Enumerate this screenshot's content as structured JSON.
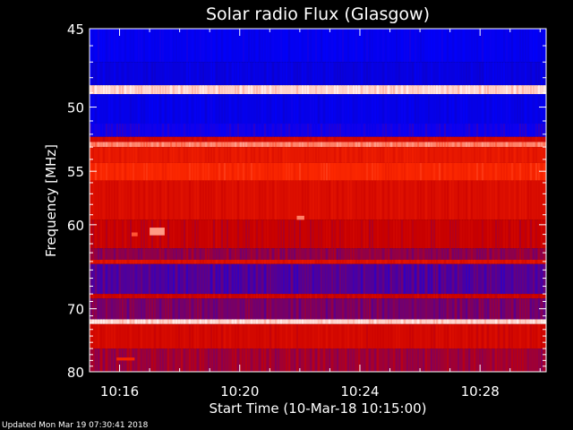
{
  "chart_data": {
    "type": "heatmap",
    "title": "Solar radio Flux (Glasgow)",
    "xlabel": "Start Time (10-Mar-18 10:15:00)",
    "ylabel": "Frequency [MHz]",
    "x_ticks": [
      "10:16",
      "10:20",
      "10:24",
      "10:28"
    ],
    "x_tick_minutes": [
      16,
      20,
      24,
      28
    ],
    "xlim_minutes": [
      15,
      30.2
    ],
    "y_ticks": [
      45,
      50,
      55,
      60,
      70,
      80
    ],
    "ylim": [
      45,
      80
    ],
    "y_scale": "reciprocal",
    "colormap": [
      "#1a008c",
      "#0000ff",
      "#c80000",
      "#ff2a00",
      "#ffffff"
    ],
    "bands": [
      {
        "f0": 45.0,
        "f1": 47.0,
        "level": 0.22
      },
      {
        "f0": 47.0,
        "f1": 48.5,
        "level": 0.18
      },
      {
        "f0": 48.5,
        "f1": 49.1,
        "level": 0.95
      },
      {
        "f0": 49.1,
        "f1": 51.2,
        "level": 0.2
      },
      {
        "f0": 51.2,
        "f1": 52.2,
        "level": 0.27
      },
      {
        "f0": 52.2,
        "f1": 52.6,
        "level": 0.55
      },
      {
        "f0": 52.6,
        "f1": 53.0,
        "level": 0.85
      },
      {
        "f0": 53.0,
        "f1": 54.3,
        "level": 0.64
      },
      {
        "f0": 54.3,
        "f1": 55.8,
        "level": 0.72
      },
      {
        "f0": 55.8,
        "f1": 59.5,
        "level": 0.58
      },
      {
        "f0": 59.5,
        "f1": 62.5,
        "level": 0.5
      },
      {
        "f0": 62.5,
        "f1": 63.8,
        "level": 0.43
      },
      {
        "f0": 63.8,
        "f1": 64.3,
        "level": 0.6
      },
      {
        "f0": 64.3,
        "f1": 68.0,
        "level": 0.35
      },
      {
        "f0": 68.0,
        "f1": 68.6,
        "level": 0.52
      },
      {
        "f0": 68.6,
        "f1": 71.5,
        "level": 0.4
      },
      {
        "f0": 71.5,
        "f1": 72.2,
        "level": 0.95
      },
      {
        "f0": 72.2,
        "f1": 76.0,
        "level": 0.55
      },
      {
        "f0": 76.0,
        "f1": 80.0,
        "level": 0.45
      }
    ],
    "bursts": [
      {
        "t0": 16.4,
        "t1": 16.6,
        "f0": 60.8,
        "f1": 61.2,
        "level": 0.8
      },
      {
        "t0": 17.0,
        "t1": 17.5,
        "f0": 60.3,
        "f1": 61.1,
        "level": 0.88
      },
      {
        "t0": 21.9,
        "t1": 22.15,
        "f0": 59.1,
        "f1": 59.5,
        "level": 0.85
      },
      {
        "t0": 15.9,
        "t1": 16.5,
        "f0": 77.5,
        "f1": 78.0,
        "level": 0.7
      }
    ]
  },
  "footer_text": "Updated Mon Mar 19 07:30:41 2018"
}
